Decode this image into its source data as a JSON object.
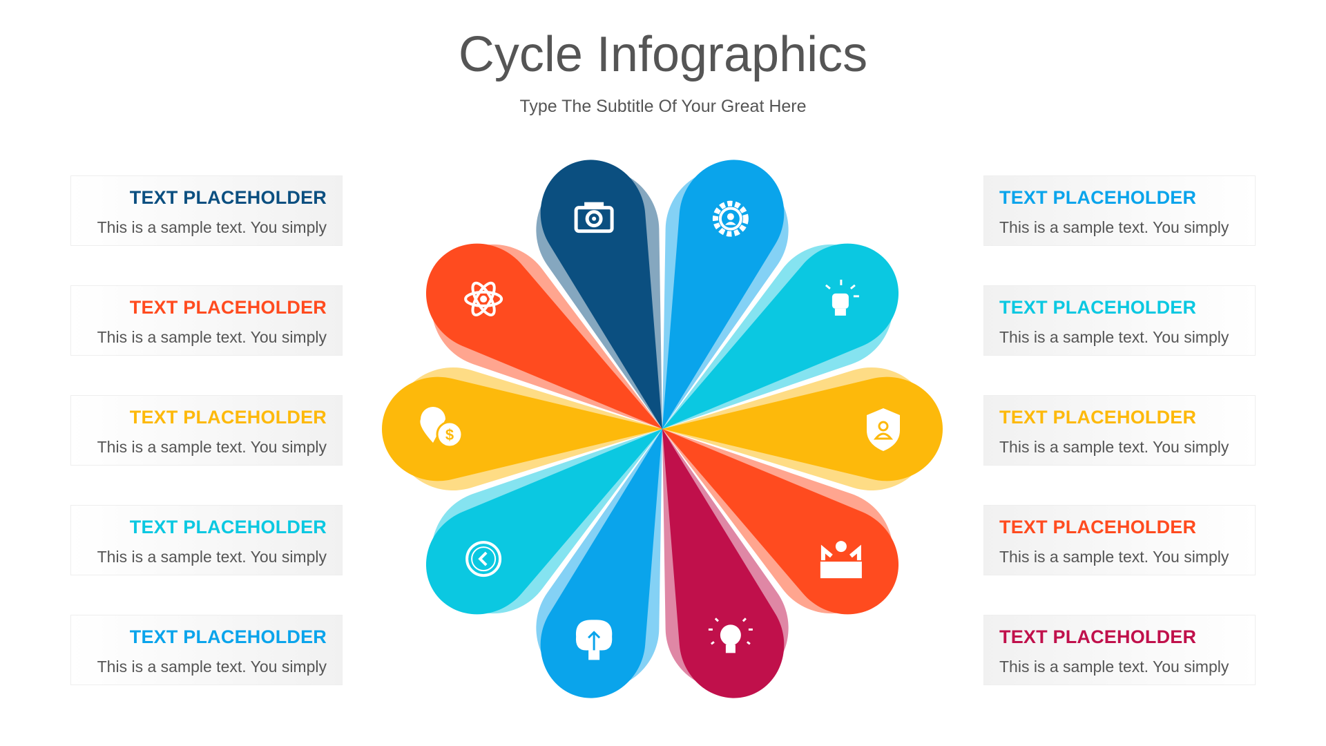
{
  "header": {
    "title": "Cycle Infographics",
    "subtitle": "Type The Subtitle Of Your Great Here"
  },
  "colors": {
    "dark_blue": "#0B4F80",
    "blue": "#0AA4EB",
    "cyan": "#0BC8E1",
    "yellow": "#FDB90B",
    "orange": "#FF4B1F",
    "magenta": "#C0104B"
  },
  "left_items": [
    {
      "title": "TEXT PLACEHOLDER",
      "text": "This is a sample text. You simply",
      "color": "#0B4F80"
    },
    {
      "title": "TEXT PLACEHOLDER",
      "text": "This is a sample text. You simply",
      "color": "#FF4B1F"
    },
    {
      "title": "TEXT PLACEHOLDER",
      "text": "This is a sample text. You simply",
      "color": "#FDB90B"
    },
    {
      "title": "TEXT PLACEHOLDER",
      "text": "This is a sample text. You simply",
      "color": "#0BC8E1"
    },
    {
      "title": "TEXT PLACEHOLDER",
      "text": "This is a sample text. You simply",
      "color": "#0AA4EB"
    }
  ],
  "right_items": [
    {
      "title": "TEXT PLACEHOLDER",
      "text": "This is a sample text. You simply",
      "color": "#0AA4EB"
    },
    {
      "title": "TEXT PLACEHOLDER",
      "text": "This is a sample text. You simply",
      "color": "#0BC8E1"
    },
    {
      "title": "TEXT PLACEHOLDER",
      "text": "This is a sample text. You simply",
      "color": "#FDB90B"
    },
    {
      "title": "TEXT PLACEHOLDER",
      "text": "This is a sample text. You simply",
      "color": "#FF4B1F"
    },
    {
      "title": "TEXT PLACEHOLDER",
      "text": "This is a sample text. You simply",
      "color": "#C0104B"
    }
  ],
  "petals": [
    {
      "color": "#0AA4EB",
      "icon": "gear-user-icon"
    },
    {
      "color": "#0BC8E1",
      "icon": "fist-idea-icon"
    },
    {
      "color": "#FDB90B",
      "icon": "shield-user-icon"
    },
    {
      "color": "#FF4B1F",
      "icon": "presentation-icon"
    },
    {
      "color": "#C0104B",
      "icon": "lightbulb-icon"
    },
    {
      "color": "#0AA4EB",
      "icon": "brain-icon"
    },
    {
      "color": "#0BC8E1",
      "icon": "clock-icon"
    },
    {
      "color": "#FDB90B",
      "icon": "location-dollar-icon"
    },
    {
      "color": "#FF4B1F",
      "icon": "atom-icon"
    },
    {
      "color": "#0B4F80",
      "icon": "camera-icon"
    }
  ]
}
